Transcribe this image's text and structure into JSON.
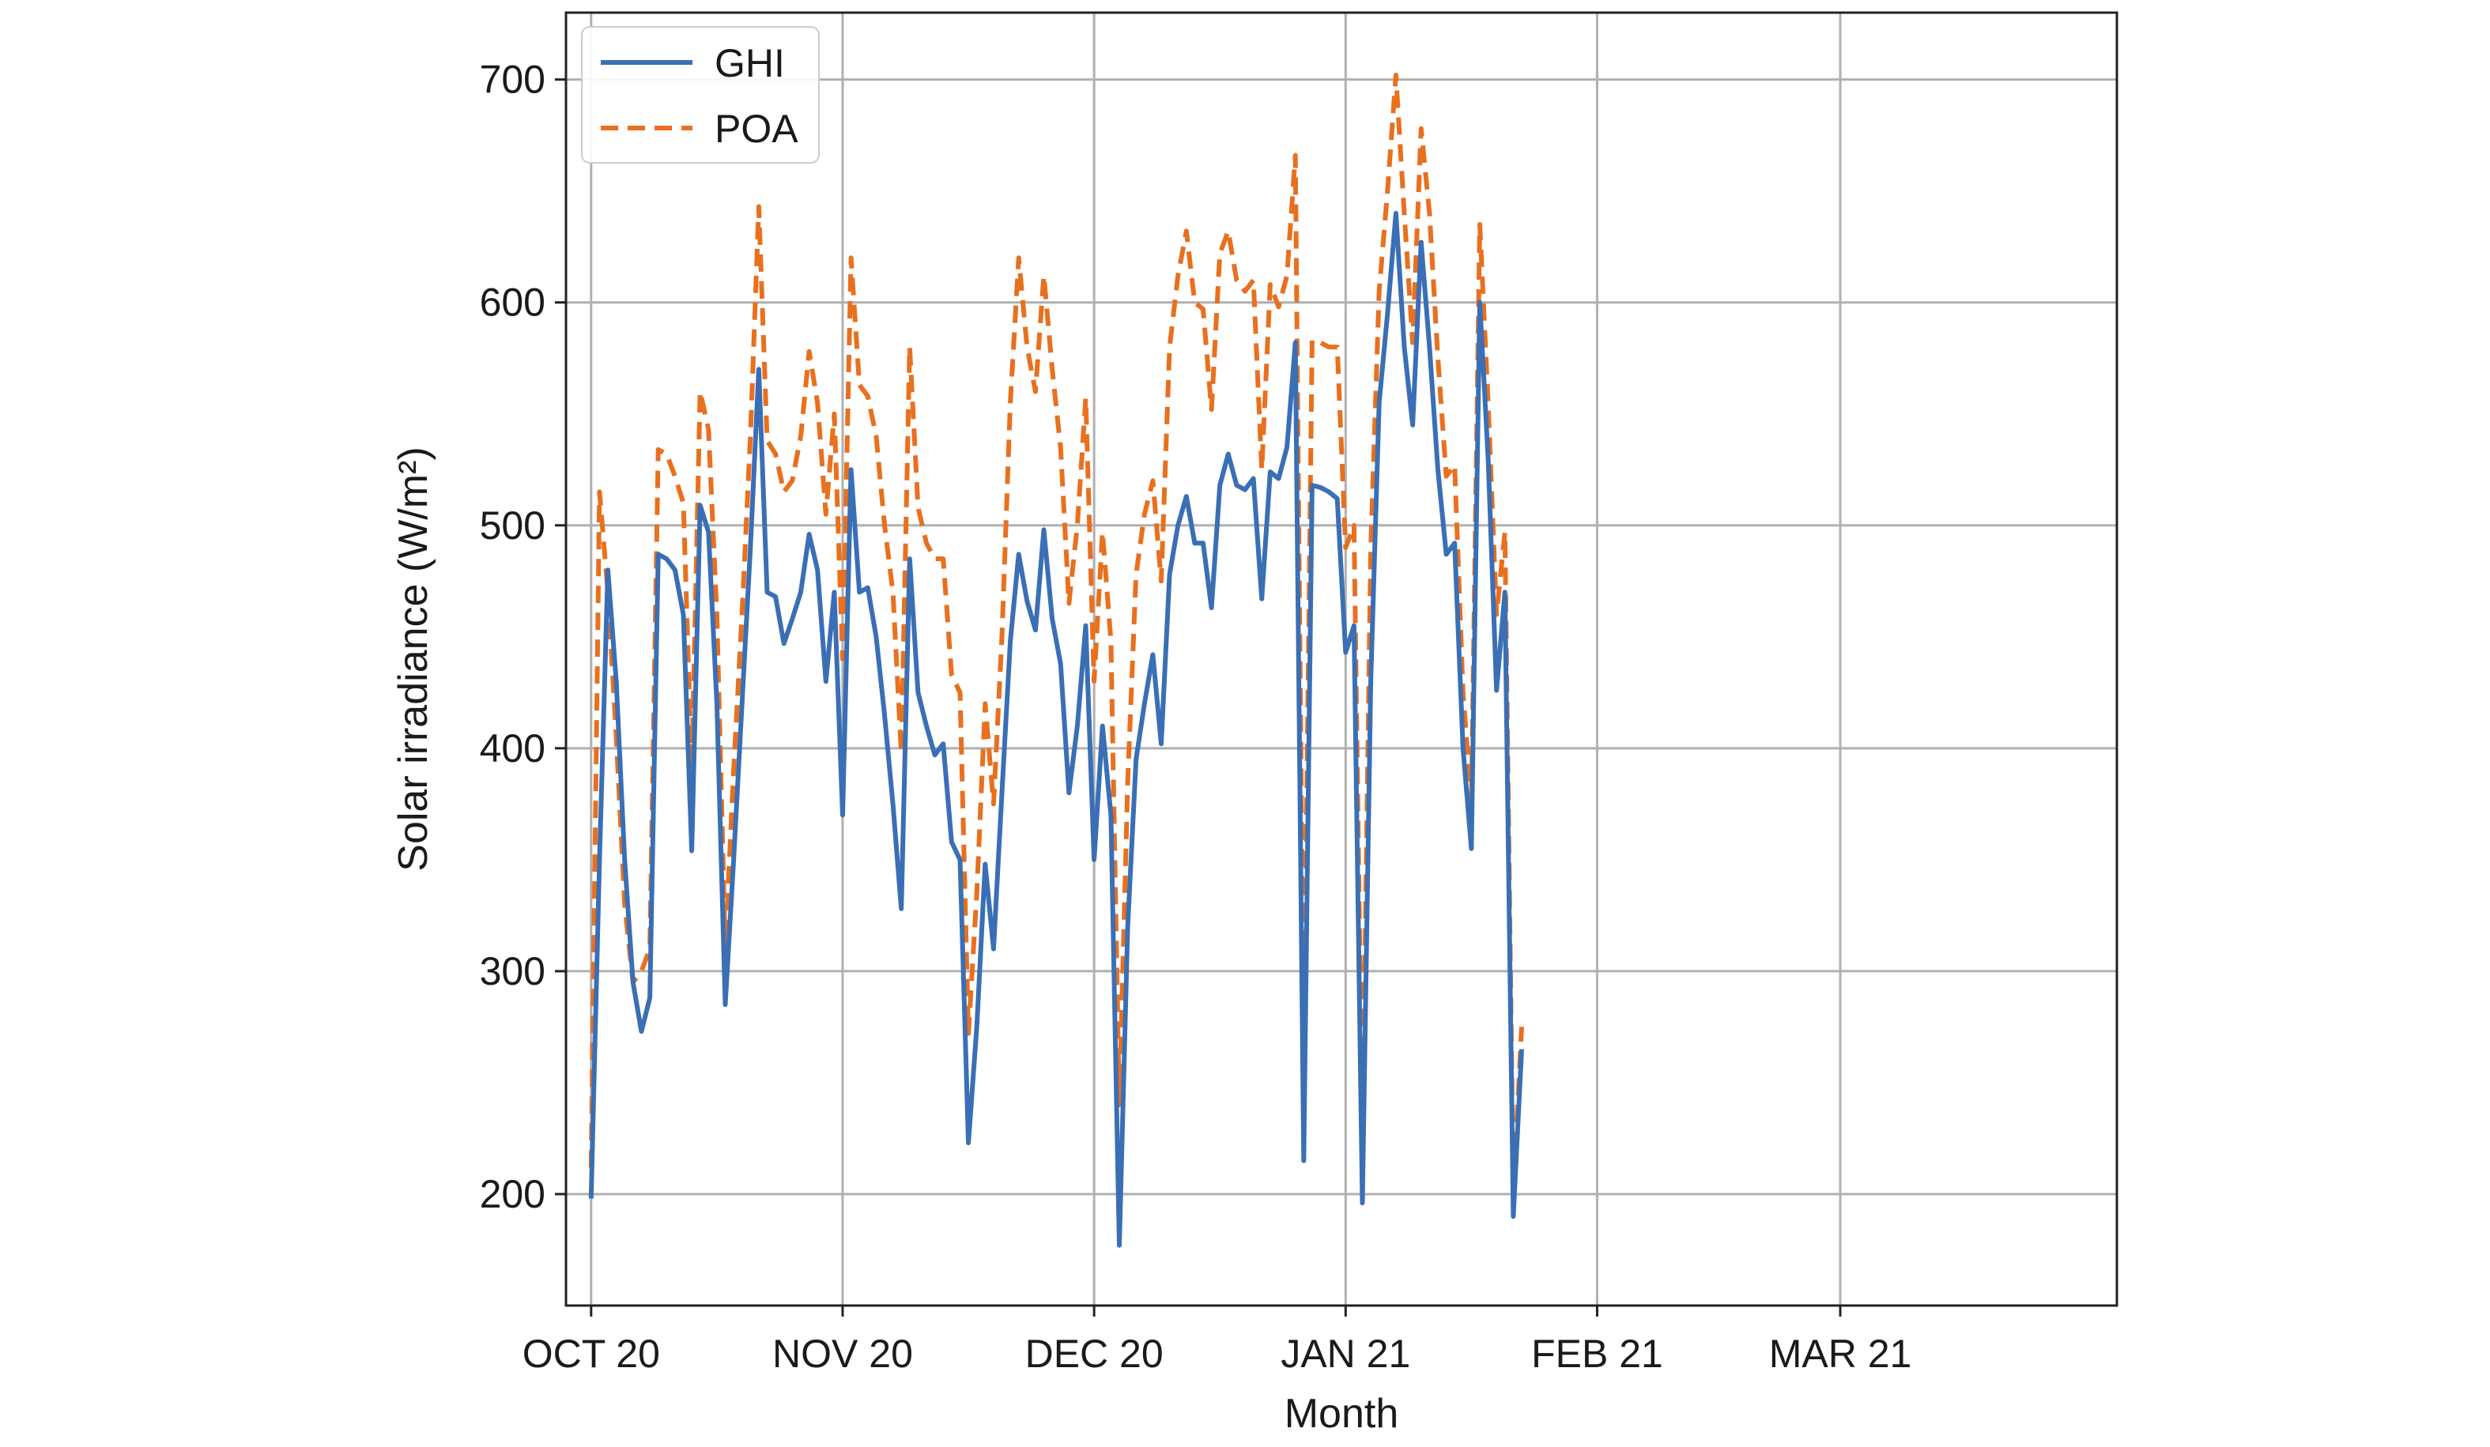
{
  "chart_data": {
    "type": "line",
    "title": "",
    "xlabel": "Month",
    "ylabel": "Solar irradiance (W/m²)",
    "ylim": [
      150,
      730
    ],
    "yticks": [
      200,
      300,
      400,
      500,
      600,
      700
    ],
    "xlim": [
      -3,
      182
    ],
    "xticks": [
      {
        "day": 0,
        "label": "OCT 20"
      },
      {
        "day": 30,
        "label": "NOV 20"
      },
      {
        "day": 60,
        "label": "DEC 20"
      },
      {
        "day": 90,
        "label": "JAN 21"
      },
      {
        "day": 120,
        "label": "FEB 21"
      },
      {
        "day": 149,
        "label": "MAR 21"
      }
    ],
    "grid": true,
    "legend_position": "top-left",
    "colors": {
      "ghi": "#3a6fb5",
      "poa": "#e8701f",
      "grid": "#b0b0b0",
      "frame": "#222222"
    },
    "series": [
      {
        "name": "GHI",
        "style": "solid",
        "points": [
          [
            0,
            198
          ],
          [
            1,
            350
          ],
          [
            2,
            480
          ],
          [
            3,
            430
          ],
          [
            4,
            350
          ],
          [
            5,
            295
          ],
          [
            6,
            273
          ],
          [
            7,
            288
          ],
          [
            8,
            487
          ],
          [
            9,
            485
          ],
          [
            10,
            480
          ],
          [
            11,
            460
          ],
          [
            12,
            354
          ],
          [
            13,
            509
          ],
          [
            14,
            497
          ],
          [
            15,
            420
          ],
          [
            16,
            285
          ],
          [
            17,
            350
          ],
          [
            18,
            420
          ],
          [
            19,
            490
          ],
          [
            20,
            570
          ],
          [
            21,
            470
          ],
          [
            22,
            468
          ],
          [
            23,
            447
          ],
          [
            24,
            458
          ],
          [
            25,
            470
          ],
          [
            26,
            496
          ],
          [
            27,
            480
          ],
          [
            28,
            430
          ],
          [
            29,
            470
          ],
          [
            30,
            370
          ],
          [
            31,
            525
          ],
          [
            32,
            470
          ],
          [
            33,
            472
          ],
          [
            34,
            450
          ],
          [
            35,
            415
          ],
          [
            36,
            375
          ],
          [
            37,
            328
          ],
          [
            38,
            485
          ],
          [
            39,
            425
          ],
          [
            40,
            410
          ],
          [
            41,
            397
          ],
          [
            42,
            402
          ],
          [
            43,
            358
          ],
          [
            44,
            350
          ],
          [
            45,
            223
          ],
          [
            46,
            275
          ],
          [
            47,
            348
          ],
          [
            48,
            310
          ],
          [
            49,
            380
          ],
          [
            50,
            448
          ],
          [
            51,
            487
          ],
          [
            52,
            466
          ],
          [
            53,
            453
          ],
          [
            54,
            498
          ],
          [
            55,
            458
          ],
          [
            56,
            438
          ],
          [
            57,
            380
          ],
          [
            58,
            410
          ],
          [
            59,
            455
          ],
          [
            60,
            350
          ],
          [
            61,
            410
          ],
          [
            62,
            370
          ],
          [
            63,
            177
          ],
          [
            64,
            320
          ],
          [
            65,
            395
          ],
          [
            66,
            420
          ],
          [
            67,
            442
          ],
          [
            68,
            402
          ],
          [
            69,
            478
          ],
          [
            70,
            500
          ],
          [
            71,
            513
          ],
          [
            72,
            492
          ],
          [
            73,
            492
          ],
          [
            74,
            463
          ],
          [
            75,
            518
          ],
          [
            76,
            532
          ],
          [
            77,
            518
          ],
          [
            78,
            516
          ],
          [
            79,
            521
          ],
          [
            80,
            467
          ],
          [
            81,
            524
          ],
          [
            82,
            521
          ],
          [
            83,
            535
          ],
          [
            84,
            582
          ],
          [
            85,
            215
          ],
          [
            86,
            518
          ],
          [
            87,
            517
          ],
          [
            88,
            515
          ],
          [
            89,
            512
          ],
          [
            90,
            443
          ],
          [
            91,
            455
          ],
          [
            92,
            196
          ],
          [
            93,
            430
          ],
          [
            94,
            555
          ],
          [
            95,
            595
          ],
          [
            96,
            640
          ],
          [
            97,
            580
          ],
          [
            98,
            545
          ],
          [
            99,
            627
          ],
          [
            100,
            580
          ],
          [
            101,
            525
          ],
          [
            102,
            487
          ],
          [
            103,
            492
          ],
          [
            104,
            400
          ],
          [
            105,
            355
          ],
          [
            106,
            600
          ],
          [
            107,
            530
          ],
          [
            108,
            426
          ],
          [
            109,
            470
          ],
          [
            110,
            190
          ],
          [
            111,
            265
          ]
        ]
      },
      {
        "name": "POA",
        "style": "dashed",
        "points": [
          [
            0,
            212
          ],
          [
            1,
            515
          ],
          [
            2,
            470
          ],
          [
            3,
            405
          ],
          [
            4,
            330
          ],
          [
            5,
            295
          ],
          [
            6,
            300
          ],
          [
            7,
            310
          ],
          [
            8,
            534
          ],
          [
            9,
            532
          ],
          [
            10,
            522
          ],
          [
            11,
            510
          ],
          [
            12,
            390
          ],
          [
            13,
            560
          ],
          [
            14,
            543
          ],
          [
            15,
            460
          ],
          [
            16,
            310
          ],
          [
            17,
            390
          ],
          [
            18,
            460
          ],
          [
            19,
            540
          ],
          [
            20,
            643
          ],
          [
            21,
            538
          ],
          [
            22,
            532
          ],
          [
            23,
            515
          ],
          [
            24,
            520
          ],
          [
            25,
            540
          ],
          [
            26,
            578
          ],
          [
            27,
            555
          ],
          [
            28,
            505
          ],
          [
            29,
            550
          ],
          [
            30,
            440
          ],
          [
            31,
            620
          ],
          [
            32,
            563
          ],
          [
            33,
            558
          ],
          [
            34,
            540
          ],
          [
            35,
            500
          ],
          [
            36,
            470
          ],
          [
            37,
            398
          ],
          [
            38,
            580
          ],
          [
            39,
            508
          ],
          [
            40,
            492
          ],
          [
            41,
            485
          ],
          [
            42,
            485
          ],
          [
            43,
            433
          ],
          [
            44,
            425
          ],
          [
            45,
            272
          ],
          [
            46,
            335
          ],
          [
            47,
            420
          ],
          [
            48,
            375
          ],
          [
            49,
            450
          ],
          [
            50,
            555
          ],
          [
            51,
            620
          ],
          [
            52,
            580
          ],
          [
            53,
            560
          ],
          [
            54,
            612
          ],
          [
            55,
            570
          ],
          [
            56,
            535
          ],
          [
            57,
            465
          ],
          [
            58,
            500
          ],
          [
            59,
            557
          ],
          [
            60,
            430
          ],
          [
            61,
            497
          ],
          [
            62,
            448
          ],
          [
            63,
            240
          ],
          [
            64,
            385
          ],
          [
            65,
            478
          ],
          [
            66,
            505
          ],
          [
            67,
            520
          ],
          [
            68,
            475
          ],
          [
            69,
            580
          ],
          [
            70,
            612
          ],
          [
            71,
            632
          ],
          [
            72,
            600
          ],
          [
            73,
            597
          ],
          [
            74,
            552
          ],
          [
            75,
            622
          ],
          [
            76,
            632
          ],
          [
            77,
            610
          ],
          [
            78,
            605
          ],
          [
            79,
            610
          ],
          [
            80,
            525
          ],
          [
            81,
            608
          ],
          [
            82,
            598
          ],
          [
            83,
            612
          ],
          [
            84,
            666
          ],
          [
            85,
            260
          ],
          [
            86,
            583
          ],
          [
            87,
            582
          ],
          [
            88,
            580
          ],
          [
            89,
            580
          ],
          [
            90,
            490
          ],
          [
            91,
            500
          ],
          [
            92,
            225
          ],
          [
            93,
            490
          ],
          [
            94,
            605
          ],
          [
            95,
            650
          ],
          [
            96,
            702
          ],
          [
            97,
            640
          ],
          [
            98,
            582
          ],
          [
            99,
            678
          ],
          [
            100,
            640
          ],
          [
            101,
            575
          ],
          [
            102,
            522
          ],
          [
            103,
            527
          ],
          [
            104,
            425
          ],
          [
            105,
            375
          ],
          [
            106,
            635
          ],
          [
            107,
            555
          ],
          [
            108,
            460
          ],
          [
            109,
            497
          ],
          [
            110,
            200
          ],
          [
            111,
            275
          ]
        ]
      }
    ]
  }
}
